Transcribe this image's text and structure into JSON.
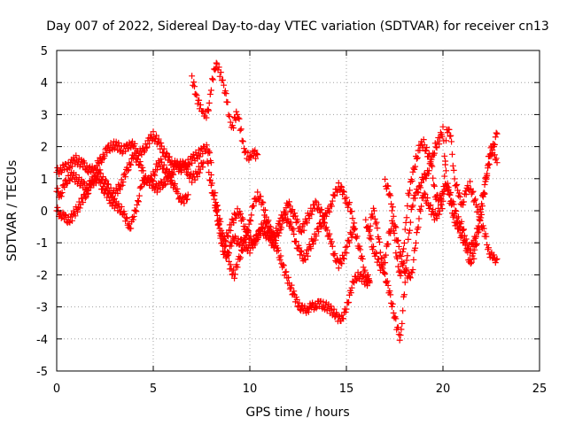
{
  "chart_data": {
    "type": "scatter",
    "title": "Day 007 of 2022, Sidereal Day-to-day VTEC variation (SDTVAR) for receiver cn13",
    "xlabel": "GPS time / hours",
    "ylabel": "SDTVAR / TECUs",
    "xlim": [
      0,
      25
    ],
    "ylim": [
      -5,
      5
    ],
    "xticks": [
      0,
      5,
      10,
      15,
      20,
      25
    ],
    "yticks": [
      -5,
      -4,
      -3,
      -2,
      -1,
      0,
      1,
      2,
      3,
      4,
      5
    ],
    "grid": true,
    "marker": "plus",
    "color": "#ff0000",
    "series": [
      {
        "name": "trace-1",
        "x": [
          0.0,
          0.2,
          0.4,
          0.6,
          0.8,
          1.0,
          1.2,
          1.4,
          1.6,
          1.8,
          2.0,
          2.2,
          2.4,
          2.6,
          2.8,
          3.0,
          3.2,
          3.4,
          3.6,
          3.8,
          4.0,
          4.2,
          4.4,
          4.6,
          4.8,
          5.0,
          5.2,
          5.4,
          5.6,
          5.8,
          6.0,
          6.2,
          6.4,
          6.6,
          6.8,
          7.0,
          7.2,
          7.4,
          7.6,
          7.8,
          8.0
        ],
        "y": [
          1.2,
          1.3,
          1.35,
          1.4,
          1.5,
          1.6,
          1.5,
          1.45,
          1.3,
          1.25,
          1.35,
          1.5,
          1.7,
          1.9,
          2.0,
          2.05,
          2.0,
          1.9,
          1.95,
          2.1,
          2.0,
          1.85,
          1.8,
          2.0,
          2.2,
          2.35,
          2.2,
          2.0,
          1.8,
          1.6,
          1.5,
          1.4,
          1.3,
          1.35,
          1.5,
          1.6,
          1.7,
          1.8,
          1.9,
          2.0,
          1.5
        ]
      },
      {
        "name": "trace-2",
        "x": [
          0.0,
          0.2,
          0.4,
          0.6,
          0.8,
          1.0,
          1.2,
          1.4,
          1.6,
          1.8,
          2.0,
          2.2,
          2.4,
          2.6,
          2.8,
          3.0,
          3.2,
          3.4,
          3.6,
          3.8,
          4.0,
          4.2,
          4.4,
          4.6,
          4.8,
          5.0,
          5.2,
          5.4,
          5.6,
          5.8,
          6.0,
          6.2,
          6.4,
          6.6,
          6.8,
          7.0,
          7.2,
          7.4,
          7.6
        ],
        "y": [
          0.6,
          0.5,
          0.8,
          1.0,
          1.1,
          1.0,
          0.9,
          0.8,
          0.7,
          0.9,
          1.1,
          1.2,
          1.0,
          0.8,
          0.6,
          0.5,
          0.7,
          0.9,
          1.2,
          1.5,
          1.7,
          1.6,
          1.3,
          1.0,
          0.9,
          1.1,
          1.4,
          1.5,
          1.3,
          1.1,
          1.2,
          1.4,
          1.5,
          1.4,
          1.2,
          1.0,
          1.1,
          1.3,
          1.5
        ]
      },
      {
        "name": "trace-3",
        "x": [
          0.0,
          0.2,
          0.4,
          0.6,
          0.8,
          1.0,
          1.2,
          1.4,
          1.6,
          1.8,
          2.0,
          2.2,
          2.4,
          2.6,
          2.8,
          3.0,
          3.2,
          3.4,
          3.6,
          3.8,
          4.0,
          4.2,
          4.4,
          4.6,
          4.8,
          5.0,
          5.2,
          5.4,
          5.6,
          5.8,
          6.0,
          6.2,
          6.4,
          6.6,
          6.8
        ],
        "y": [
          0.0,
          -0.1,
          -0.2,
          -0.3,
          -0.2,
          0.0,
          0.2,
          0.4,
          0.6,
          0.8,
          1.0,
          0.9,
          0.7,
          0.5,
          0.3,
          0.2,
          0.1,
          0.0,
          -0.3,
          -0.5,
          -0.2,
          0.3,
          0.8,
          1.0,
          0.9,
          0.8,
          0.7,
          0.8,
          0.9,
          1.0,
          0.9,
          0.6,
          0.4,
          0.3,
          0.5
        ]
      },
      {
        "name": "trace-4",
        "x": [
          7.0,
          7.1,
          7.2,
          7.3,
          7.4,
          7.5,
          7.6,
          7.7,
          7.8,
          7.9,
          8.0,
          8.1,
          8.2,
          8.3,
          8.4,
          8.5,
          8.6,
          8.7,
          8.8,
          8.9,
          9.0,
          9.1,
          9.2,
          9.3,
          9.4,
          9.5,
          9.6,
          9.7,
          9.8,
          9.9,
          10.0,
          10.1,
          10.2,
          10.3,
          10.4
        ],
        "y": [
          4.1,
          3.9,
          3.6,
          3.4,
          3.3,
          3.2,
          3.1,
          3.0,
          3.0,
          3.3,
          3.8,
          4.2,
          4.5,
          4.6,
          4.4,
          4.2,
          4.0,
          3.7,
          3.5,
          3.1,
          2.8,
          2.6,
          2.8,
          3.0,
          2.9,
          2.6,
          2.3,
          2.0,
          1.8,
          1.7,
          1.6,
          1.7,
          1.8,
          1.75,
          1.75
        ]
      },
      {
        "name": "trace-5",
        "x": [
          7.8,
          8.0,
          8.2,
          8.4,
          8.6,
          8.8,
          9.0,
          9.2,
          9.4,
          9.6,
          9.8,
          10.0,
          10.2,
          10.4,
          10.6,
          10.8,
          11.0,
          11.2,
          11.4,
          11.6,
          11.8,
          12.0,
          12.2,
          12.4,
          12.6,
          12.8,
          13.0,
          13.2,
          13.4,
          13.6,
          13.8,
          14.0,
          14.2,
          14.4,
          14.6,
          14.8,
          15.0,
          15.2,
          15.4,
          15.6,
          15.8,
          16.0,
          16.2
        ],
        "y": [
          1.5,
          0.8,
          0.2,
          -0.5,
          -1.0,
          -0.8,
          -0.5,
          -0.2,
          0.0,
          -0.3,
          -0.6,
          -0.9,
          -1.0,
          -0.8,
          -0.5,
          -0.4,
          -0.6,
          -0.9,
          -0.8,
          -0.5,
          -0.2,
          -0.3,
          -0.6,
          -1.0,
          -1.3,
          -1.5,
          -1.3,
          -1.0,
          -0.8,
          -0.5,
          -0.3,
          -0.1,
          0.2,
          0.5,
          0.8,
          0.6,
          0.3,
          0.1,
          -0.5,
          -1.0,
          -1.5,
          -2.0,
          -2.2
        ]
      },
      {
        "name": "trace-6",
        "x": [
          8.0,
          8.2,
          8.4,
          8.6,
          8.8,
          9.0,
          9.2,
          9.4,
          9.6,
          9.8,
          10.0,
          10.2,
          10.4,
          10.6,
          10.8,
          11.0,
          11.2,
          11.4,
          11.6,
          11.8,
          12.0,
          12.2,
          12.4,
          12.6,
          12.8,
          13.0,
          13.2,
          13.4,
          13.6,
          13.8,
          14.0,
          14.2,
          14.4,
          14.6,
          14.8,
          15.0,
          15.2,
          15.4,
          15.6,
          15.8,
          16.0,
          16.2
        ],
        "y": [
          1.0,
          0.2,
          -0.5,
          -1.2,
          -1.5,
          -1.0,
          -0.9,
          -0.95,
          -1.0,
          -1.1,
          -1.2,
          -1.0,
          -0.8,
          -0.6,
          -0.7,
          -0.9,
          -1.0,
          -1.2,
          -1.5,
          -1.9,
          -2.2,
          -2.5,
          -2.8,
          -3.0,
          -3.1,
          -3.05,
          -3.0,
          -2.95,
          -2.9,
          -2.95,
          -3.0,
          -3.1,
          -3.2,
          -3.4,
          -3.3,
          -3.1,
          -2.5,
          -2.2,
          -2.0,
          -2.1,
          -2.2,
          -2.25
        ]
      },
      {
        "name": "trace-7",
        "x": [
          8.2,
          8.4,
          8.6,
          8.8,
          9.0,
          9.2,
          9.4,
          9.6,
          9.8,
          10.0,
          10.2,
          10.4,
          10.6,
          10.8,
          11.0,
          11.2,
          11.4,
          11.6,
          11.8,
          12.0,
          12.2,
          12.4,
          12.6,
          12.8,
          13.0,
          13.2,
          13.4,
          13.6,
          13.8,
          14.0,
          14.2,
          14.4,
          14.6,
          14.8,
          15.0,
          15.2,
          15.4
        ],
        "y": [
          0.5,
          -0.2,
          -0.8,
          -1.3,
          -1.8,
          -2.0,
          -1.6,
          -1.2,
          -0.8,
          -0.3,
          0.2,
          0.5,
          0.3,
          -0.1,
          -0.5,
          -0.8,
          -0.6,
          -0.3,
          0.0,
          0.2,
          0.0,
          -0.3,
          -0.6,
          -0.5,
          -0.2,
          0.0,
          0.2,
          0.1,
          -0.2,
          -0.6,
          -1.0,
          -1.4,
          -1.7,
          -1.5,
          -1.2,
          -0.8,
          -0.6
        ]
      },
      {
        "name": "trace-8",
        "x": [
          16.2,
          16.4,
          16.6,
          16.8,
          17.0,
          17.2,
          17.4,
          17.6,
          17.8,
          18.0,
          18.2,
          18.4,
          18.6,
          18.8,
          19.0,
          19.2,
          19.4,
          19.6,
          19.8,
          20.0,
          20.2,
          20.4,
          20.6,
          20.8,
          21.0,
          21.2,
          21.4,
          21.6,
          21.8,
          22.0,
          22.2,
          22.4,
          22.6,
          22.8
        ],
        "y": [
          -0.5,
          0.0,
          -0.5,
          -1.5,
          -2.0,
          -2.5,
          -3.0,
          -3.6,
          -4.0,
          -2.5,
          -1.0,
          0.2,
          0.5,
          0.8,
          1.0,
          1.2,
          1.5,
          2.0,
          2.2,
          2.5,
          0.8,
          0.2,
          -0.3,
          -0.6,
          -0.8,
          -1.2,
          -1.6,
          -1.4,
          -0.8,
          0.0,
          0.8,
          1.8,
          2.0,
          1.5
        ]
      },
      {
        "name": "trace-9",
        "x": [
          16.0,
          16.2,
          16.4,
          16.6,
          16.8,
          17.0,
          17.2,
          17.4,
          17.6,
          17.8,
          18.0,
          18.2,
          18.4,
          18.6,
          18.8,
          19.0,
          19.2,
          19.4,
          19.6,
          19.8,
          20.0,
          20.2,
          20.4,
          20.6,
          20.8,
          21.0,
          21.2,
          21.4,
          21.6,
          21.8,
          22.0,
          22.2,
          22.4,
          22.6,
          22.8
        ],
        "y": [
          -0.3,
          -0.8,
          -1.2,
          -1.5,
          -1.8,
          -1.5,
          -0.8,
          -0.3,
          -1.5,
          -2.0,
          -1.0,
          0.5,
          1.0,
          1.6,
          2.0,
          2.1,
          1.8,
          1.5,
          0.5,
          0.3,
          0.6,
          0.8,
          0.5,
          0.0,
          -0.3,
          -0.5,
          -1.0,
          -1.2,
          -1.0,
          -0.5,
          0.2,
          1.0,
          1.5,
          2.0,
          2.4
        ]
      },
      {
        "name": "trace-10",
        "x": [
          17.0,
          17.2,
          17.4,
          17.6,
          17.8,
          18.0,
          18.2,
          18.4,
          18.6,
          18.8,
          19.0,
          19.2,
          19.4,
          19.6,
          19.8,
          20.0,
          20.2,
          20.4,
          20.6,
          20.8,
          21.0,
          21.2,
          21.4,
          21.6,
          21.8,
          22.0,
          22.2,
          22.4,
          22.6,
          22.8
        ],
        "y": [
          0.9,
          0.6,
          0.0,
          -0.8,
          -1.4,
          -1.8,
          -2.1,
          -1.9,
          -1.0,
          0.0,
          0.5,
          0.3,
          0.0,
          -0.2,
          0.0,
          0.2,
          2.6,
          2.3,
          1.0,
          0.5,
          0.2,
          0.6,
          0.8,
          0.4,
          0.0,
          -0.4,
          -0.8,
          -1.3,
          -1.5,
          -1.5
        ]
      }
    ]
  }
}
